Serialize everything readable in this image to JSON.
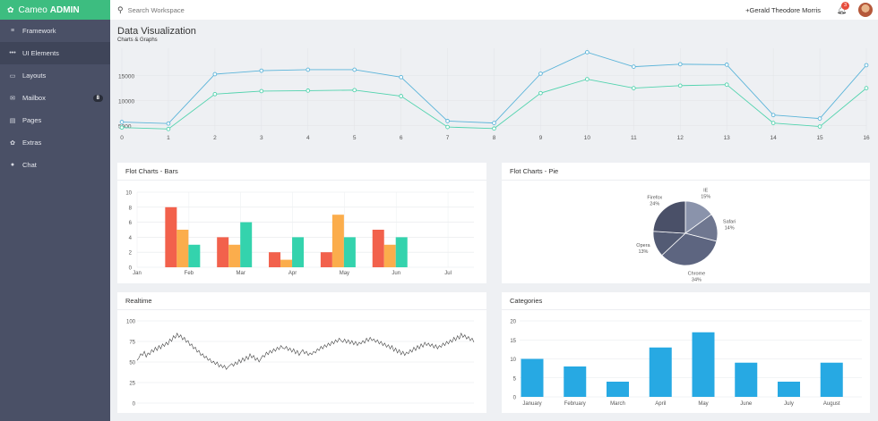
{
  "brand": {
    "logo_icon": "leaf-icon",
    "name": "Cameo",
    "accent": "ADMIN",
    "color": "#3dbd80"
  },
  "sidebar": {
    "items": [
      {
        "label": "Framework",
        "icon": "layers-icon",
        "glyph": "≡"
      },
      {
        "label": "UI Elements",
        "icon": "dots-icon",
        "glyph": "•••"
      },
      {
        "label": "Layouts",
        "icon": "layout-icon",
        "glyph": "▭"
      },
      {
        "label": "Mailbox",
        "icon": "mail-icon",
        "glyph": "✉",
        "badge": "8"
      },
      {
        "label": "Pages",
        "icon": "page-icon",
        "glyph": "▤"
      },
      {
        "label": "Extras",
        "icon": "gift-icon",
        "glyph": "✿"
      },
      {
        "label": "Chat",
        "icon": "chat-icon",
        "glyph": "●"
      }
    ],
    "active_index": 1
  },
  "topbar": {
    "search_placeholder": "Search Workspace",
    "user": "+Gerald Theodore Morris",
    "notifications": "3"
  },
  "page": {
    "title": "Data Visualization",
    "subtitle": "Charts & Graphs"
  },
  "panels": {
    "bars": "Flot Charts - Bars",
    "pie": "Flot Charts - Pie",
    "realtime": "Realtime",
    "categories": "Categories"
  },
  "chart_data": [
    {
      "type": "line",
      "x": [
        0,
        1,
        2,
        3,
        4,
        5,
        6,
        7,
        8,
        9,
        10,
        11,
        12,
        13,
        14,
        15,
        16
      ],
      "x_ticks": [
        "0",
        "1",
        "2",
        "3",
        "4",
        "5",
        "6",
        "7",
        "8",
        "9",
        "10",
        "11",
        "12",
        "13",
        "14",
        "15",
        "16"
      ],
      "y_ticks": [
        "5000",
        "10000",
        "15000"
      ],
      "ylim": [
        4000,
        20500
      ],
      "series": [
        {
          "color": "#5bb4d9",
          "values": [
            5700,
            5400,
            15300,
            16000,
            16200,
            16200,
            14700,
            5900,
            5500,
            15400,
            19700,
            16800,
            17300,
            17200,
            7100,
            6400,
            17100
          ]
        },
        {
          "color": "#52d3ae",
          "values": [
            4600,
            4300,
            11300,
            11900,
            12000,
            12100,
            10900,
            4700,
            4400,
            11500,
            14300,
            12500,
            13000,
            13200,
            5500,
            4800,
            12500
          ]
        }
      ]
    },
    {
      "type": "bar",
      "categories": [
        "Jan",
        "Feb",
        "Mar",
        "Apr",
        "May",
        "Jun",
        "Jul"
      ],
      "y_ticks": [
        "0",
        "2",
        "4",
        "6",
        "8",
        "10"
      ],
      "ylim": [
        0,
        10
      ],
      "series": [
        {
          "color": "#f2614c",
          "values": [
            null,
            8,
            4,
            2,
            2,
            5,
            null
          ]
        },
        {
          "color": "#fbad4c",
          "values": [
            null,
            5,
            3,
            1,
            7,
            3,
            null
          ]
        },
        {
          "color": "#34d3ad",
          "values": [
            null,
            3,
            6,
            4,
            4,
            4,
            null
          ]
        }
      ]
    },
    {
      "type": "pie",
      "slices": [
        {
          "name": "IE",
          "pct": "15%",
          "value": 15,
          "color": "#8a93ab"
        },
        {
          "name": "Safari",
          "pct": "14%",
          "value": 14,
          "color": "#6f7790"
        },
        {
          "name": "Chrome",
          "pct": "34%",
          "value": 34,
          "color": "#5d6580"
        },
        {
          "name": "Opera",
          "pct": "13%",
          "value": 13,
          "color": "#535b74"
        },
        {
          "name": "Firefox",
          "pct": "24%",
          "value": 24,
          "color": "#4a5068"
        }
      ]
    },
    {
      "type": "line",
      "y_ticks": [
        "0",
        "25",
        "50",
        "75",
        "100"
      ],
      "ylim": [
        0,
        100
      ],
      "color": "#444",
      "values": [
        52,
        55,
        60,
        58,
        63,
        56,
        61,
        59,
        65,
        62,
        68,
        64,
        70,
        66,
        72,
        69,
        74,
        71,
        78,
        75,
        82,
        79,
        85,
        80,
        83,
        77,
        80,
        74,
        76,
        70,
        72,
        66,
        68,
        62,
        64,
        58,
        60,
        55,
        57,
        52,
        54,
        49,
        51,
        47,
        50,
        44,
        47,
        43,
        46,
        41,
        44,
        46,
        48,
        45,
        50,
        47,
        53,
        49,
        55,
        51,
        57,
        53,
        60,
        55,
        58,
        52,
        55,
        50,
        54,
        58,
        56,
        62,
        59,
        64,
        61,
        66,
        63,
        68,
        65,
        70,
        67,
        66,
        69,
        64,
        67,
        62,
        66,
        60,
        64,
        58,
        62,
        65,
        60,
        63,
        58,
        61,
        59,
        63,
        61,
        66,
        64,
        69,
        66,
        71,
        68,
        73,
        70,
        75,
        72,
        77,
        74,
        79,
        76,
        74,
        78,
        73,
        77,
        72,
        76,
        71,
        75,
        70,
        74,
        72,
        76,
        73,
        79,
        75,
        80,
        76,
        78,
        74,
        77,
        72,
        75,
        70,
        73,
        68,
        71,
        66,
        70,
        63,
        67,
        61,
        65,
        59,
        63,
        58,
        62,
        60,
        65,
        62,
        68,
        64,
        70,
        66,
        72,
        68,
        74,
        70,
        73,
        69,
        72,
        67,
        71,
        66,
        70,
        68,
        73,
        70,
        75,
        72,
        77,
        74,
        80,
        76,
        82,
        78,
        85,
        80,
        83,
        78,
        81,
        76,
        79,
        74
      ]
    },
    {
      "type": "bar",
      "categories": [
        "January",
        "February",
        "March",
        "April",
        "May",
        "June",
        "July",
        "August"
      ],
      "y_ticks": [
        "0",
        "5",
        "10",
        "15",
        "20"
      ],
      "ylim": [
        0,
        20
      ],
      "color": "#27a9e3",
      "values": [
        10,
        8,
        4,
        13,
        17,
        9,
        4,
        9
      ]
    }
  ]
}
